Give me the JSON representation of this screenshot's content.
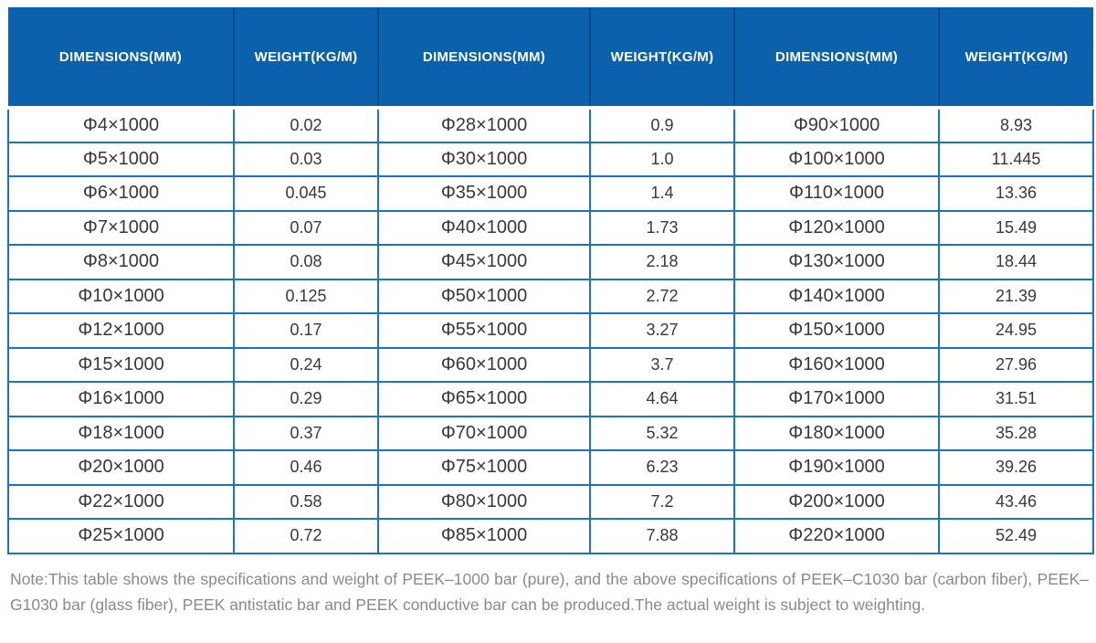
{
  "colors": {
    "header_bg": "#0b61ab",
    "header_divider": "#0a4a86",
    "header_text": "#ffffff",
    "row_border": "#1b74c0",
    "cell_text": "#383838",
    "note_text": "#8a8a8a"
  },
  "table": {
    "headers": [
      "DIMENSIONS(MM)",
      "WEIGHT(KG/M)",
      "DIMENSIONS(MM)",
      "WEIGHT(KG/M)",
      "DIMENSIONS(MM)",
      "WEIGHT(KG/M)"
    ],
    "rows": [
      [
        "Φ4×1000",
        "0.02",
        "Φ28×1000",
        "0.9",
        "Φ90×1000",
        "8.93"
      ],
      [
        "Φ5×1000",
        "0.03",
        "Φ30×1000",
        "1.0",
        "Φ100×1000",
        "11.445"
      ],
      [
        "Φ6×1000",
        "0.045",
        "Φ35×1000",
        "1.4",
        "Φ110×1000",
        "13.36"
      ],
      [
        "Φ7×1000",
        "0.07",
        "Φ40×1000",
        "1.73",
        "Φ120×1000",
        "15.49"
      ],
      [
        "Φ8×1000",
        "0.08",
        "Φ45×1000",
        "2.18",
        "Φ130×1000",
        "18.44"
      ],
      [
        "Φ10×1000",
        "0.125",
        "Φ50×1000",
        "2.72",
        "Φ140×1000",
        "21.39"
      ],
      [
        "Φ12×1000",
        "0.17",
        "Φ55×1000",
        "3.27",
        "Φ150×1000",
        "24.95"
      ],
      [
        "Φ15×1000",
        "0.24",
        "Φ60×1000",
        "3.7",
        "Φ160×1000",
        "27.96"
      ],
      [
        "Φ16×1000",
        "0.29",
        "Φ65×1000",
        "4.64",
        "Φ170×1000",
        "31.51"
      ],
      [
        "Φ18×1000",
        "0.37",
        "Φ70×1000",
        "5.32",
        "Φ180×1000",
        "35.28"
      ],
      [
        "Φ20×1000",
        "0.46",
        "Φ75×1000",
        "6.23",
        "Φ190×1000",
        "39.26"
      ],
      [
        "Φ22×1000",
        "0.58",
        "Φ80×1000",
        "7.2",
        "Φ200×1000",
        "43.46"
      ],
      [
        "Φ25×1000",
        "0.72",
        "Φ85×1000",
        "7.88",
        "Φ220×1000",
        "52.49"
      ]
    ]
  },
  "note": {
    "text": "Note:This table shows the specifications and weight of PEEK–1000 bar (pure), and the above specifications of PEEK–C1030 bar (carbon fiber), PEEK–G1030 bar (glass fiber), PEEK antistatic bar and PEEK conductive bar can be produced.The actual weight is subject to weighting."
  }
}
